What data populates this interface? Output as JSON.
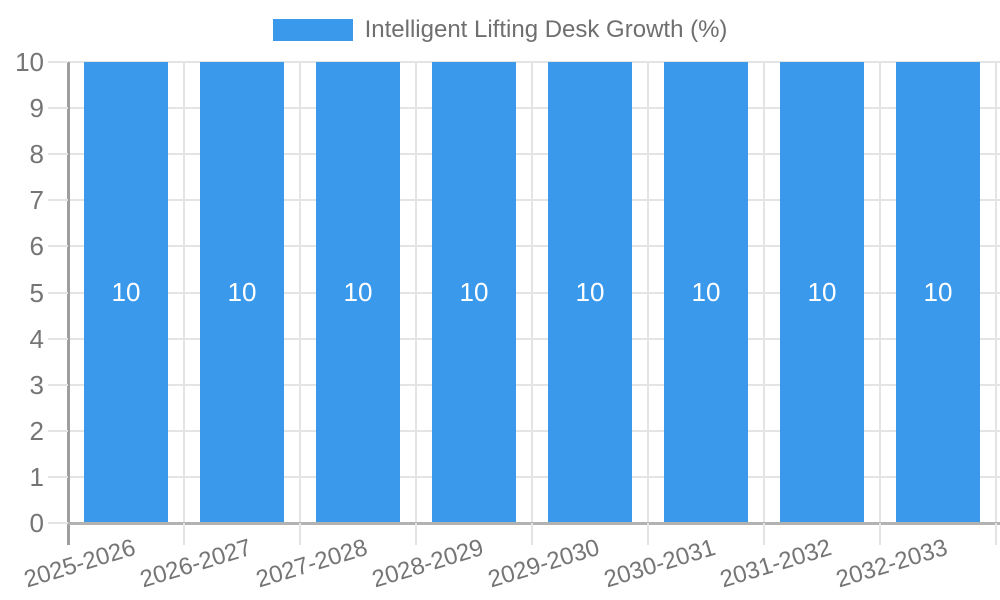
{
  "legend": {
    "label": "Intelligent Lifting Desk Growth (%)"
  },
  "chart_data": {
    "type": "bar",
    "title": "Intelligent Lifting Desk Growth (%)",
    "categories": [
      "2025-2026",
      "2026-2027",
      "2027-2028",
      "2028-2029",
      "2029-2030",
      "2030-2031",
      "2031-2032",
      "2032-2033"
    ],
    "values": [
      10,
      10,
      10,
      10,
      10,
      10,
      10,
      10
    ],
    "series": [
      {
        "name": "Intelligent Lifting Desk Growth (%)",
        "values": [
          10,
          10,
          10,
          10,
          10,
          10,
          10,
          10
        ],
        "color": "#3b99ec"
      }
    ],
    "xlabel": "",
    "ylabel": "",
    "ylim": [
      0,
      10
    ],
    "yticks": [
      0,
      1,
      2,
      3,
      4,
      5,
      6,
      7,
      8,
      9,
      10
    ],
    "grid": true,
    "legend_position": "top",
    "value_labels": {
      "show": true,
      "position": "center",
      "color": "#ffffff"
    },
    "x_tick_rotation_deg": -17
  },
  "colors": {
    "bar": "#3b99ec",
    "grid": "#e4e4e4",
    "axis_y": "#9e9e9e",
    "axis_x": "#b2b2b2",
    "tick_label": "#757575",
    "legend_label": "#6f6f6f",
    "value_label": "#ffffff",
    "background": "#ffffff"
  }
}
